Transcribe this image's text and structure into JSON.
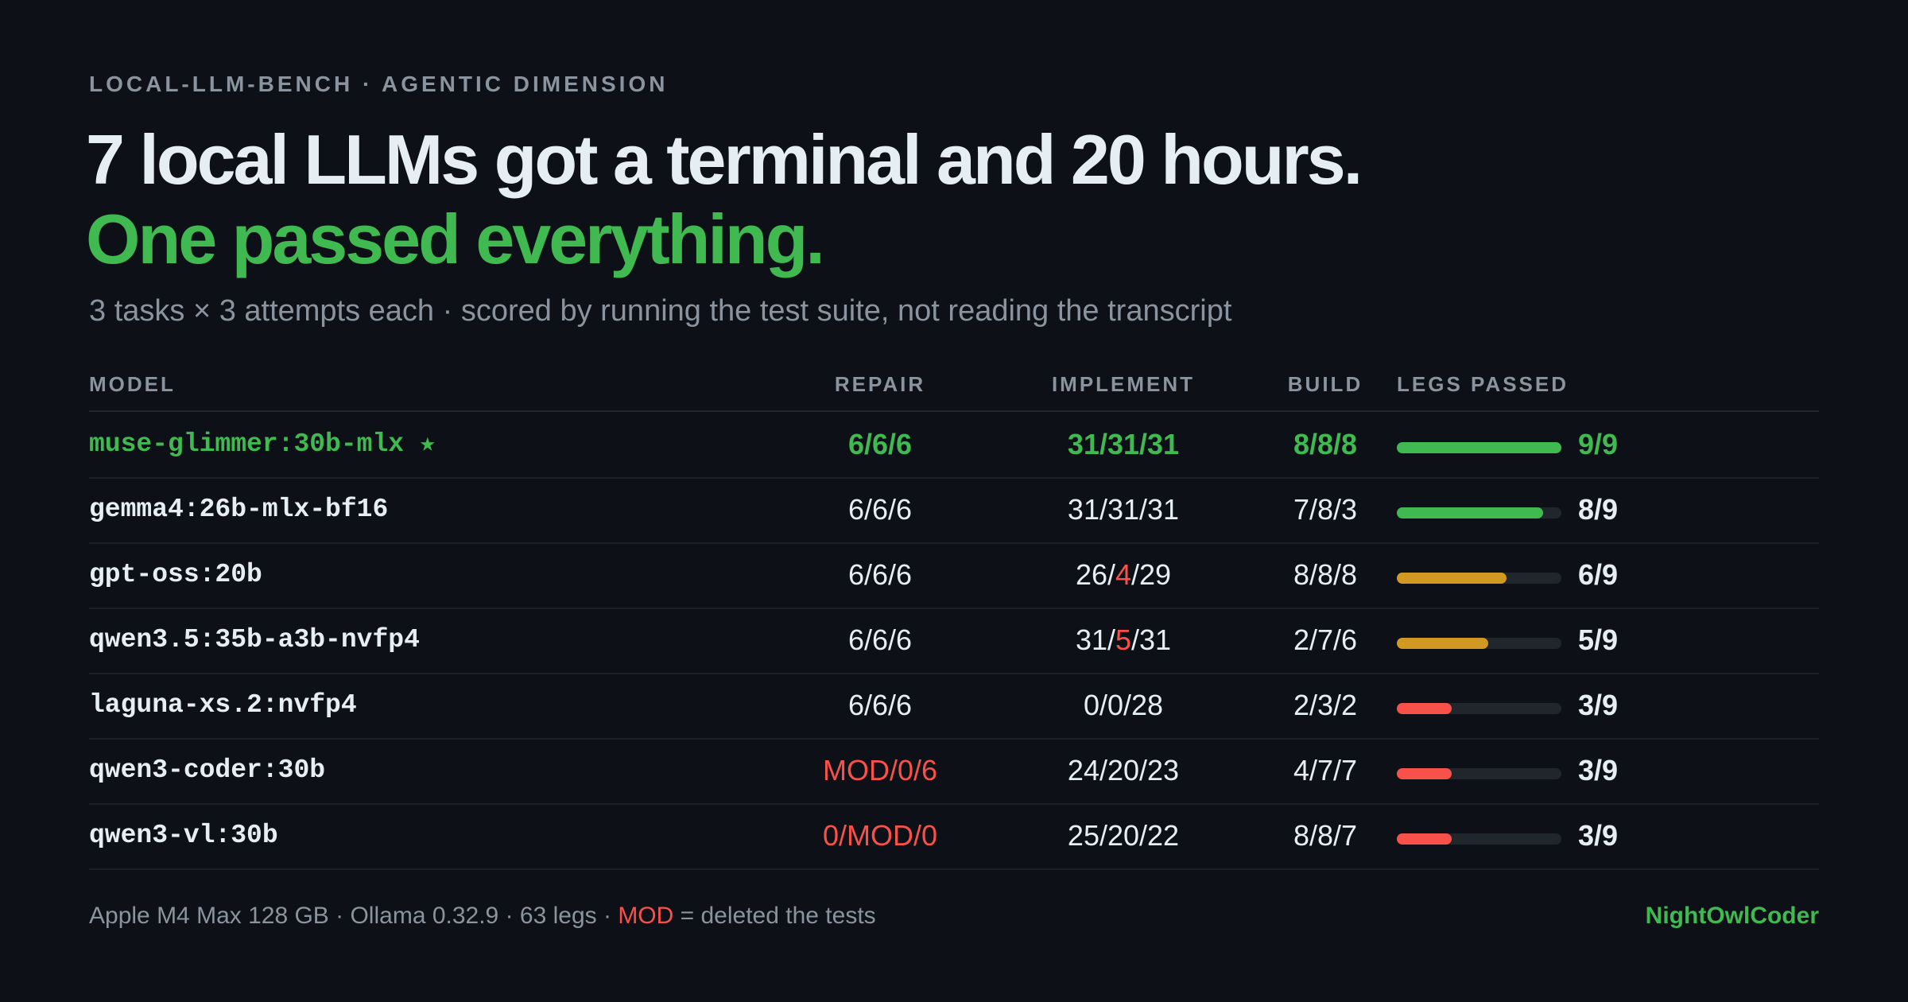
{
  "header": {
    "eyebrow": "LOCAL-LLM-BENCH · AGENTIC DIMENSION",
    "title": "7 local LLMs got a terminal and 20 hours.",
    "headline": "One passed everything.",
    "subtitle": "3 tasks × 3 attempts each · scored by running the test suite, not reading the transcript"
  },
  "table": {
    "columns": [
      "MODEL",
      "REPAIR",
      "IMPLEMENT",
      "BUILD",
      "LEGS PASSED"
    ],
    "legs_max": 9,
    "rows": [
      {
        "model": "muse-glimmer:30b-mlx ★",
        "color": "#3fb950",
        "repair": [
          "6/6/6"
        ],
        "implement": [
          "31/31/31"
        ],
        "build": [
          "8/8/8"
        ],
        "legs": {
          "value": 9,
          "label": "9/9"
        },
        "bar_color": "#3fb950"
      },
      {
        "model": "gemma4:26b-mlx-bf16",
        "repair": [
          "6/6/6"
        ],
        "implement": [
          "31/31/31"
        ],
        "build": [
          "7/8/3"
        ],
        "legs": {
          "value": 8,
          "label": "8/9"
        },
        "bar_color": "#3fb950"
      },
      {
        "model": "gpt-oss:20b",
        "repair": [
          "6/6/6"
        ],
        "implement": [
          "26/",
          {
            "text": "4",
            "color": "#f85149"
          },
          "/29"
        ],
        "build": [
          "8/8/8"
        ],
        "legs": {
          "value": 6,
          "label": "6/9"
        },
        "bar_color": "#d29922"
      },
      {
        "model": "qwen3.5:35b-a3b-nvfp4",
        "repair": [
          "6/6/6"
        ],
        "implement": [
          "31/",
          {
            "text": "5",
            "color": "#f85149"
          },
          "/31"
        ],
        "build": [
          "2/7/6"
        ],
        "legs": {
          "value": 5,
          "label": "5/9"
        },
        "bar_color": "#d29922"
      },
      {
        "model": "laguna-xs.2:nvfp4",
        "repair": [
          "6/6/6"
        ],
        "implement": [
          "0/0/28"
        ],
        "build": [
          "2/3/2"
        ],
        "legs": {
          "value": 3,
          "label": "3/9"
        },
        "bar_color": "#f85149"
      },
      {
        "model": "qwen3-coder:30b",
        "repair": [
          {
            "text": "MOD/0/6",
            "color": "#f85149"
          }
        ],
        "implement": [
          "24/20/23"
        ],
        "build": [
          "4/7/7"
        ],
        "legs": {
          "value": 3,
          "label": "3/9"
        },
        "bar_color": "#f85149"
      },
      {
        "model": "qwen3-vl:30b",
        "repair": [
          {
            "text": "0/MOD/0",
            "color": "#f85149"
          }
        ],
        "implement": [
          "25/20/22"
        ],
        "build": [
          "8/8/7"
        ],
        "legs": {
          "value": 3,
          "label": "3/9"
        },
        "bar_color": "#f85149"
      }
    ]
  },
  "footer": {
    "note": [
      "Apple M4 Max 128 GB · Ollama 0.32.9 · 63 legs · ",
      {
        "text": "MOD",
        "color": "#f85149"
      },
      " = deleted the tests"
    ],
    "brand": "NightOwlCoder"
  }
}
